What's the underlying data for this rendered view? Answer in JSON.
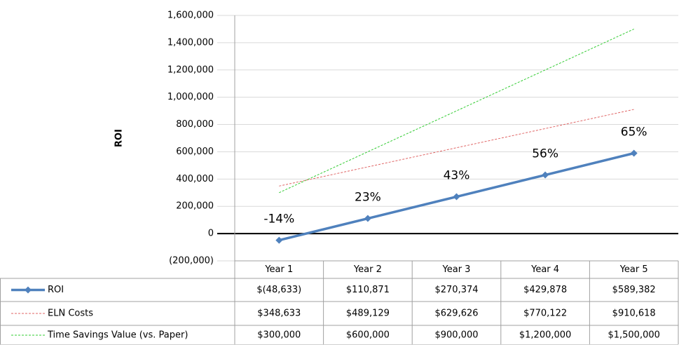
{
  "chart_data": {
    "type": "line",
    "ylabel": "ROI",
    "categories": [
      "Year 1",
      "Year 2",
      "Year 3",
      "Year 4",
      "Year 5"
    ],
    "series": [
      {
        "name": "ROI",
        "color": "#4f81bd",
        "values": [
          -48633,
          110871,
          270374,
          429878,
          589382
        ],
        "value_labels": [
          "$(48,633)",
          "$110,871",
          "$270,374",
          "$429,878",
          "$589,382"
        ]
      },
      {
        "name": "ELN Costs",
        "color": "#e06666",
        "values": [
          348633,
          489129,
          629626,
          770122,
          910618
        ],
        "value_labels": [
          "$348,633",
          "$489,129",
          "$629,626",
          "$770,122",
          "$910,618"
        ]
      },
      {
        "name": "Time Savings Value (vs. Paper)",
        "color": "#33cc33",
        "values": [
          300000,
          600000,
          900000,
          1200000,
          1500000
        ],
        "value_labels": [
          "$300,000",
          "$600,000",
          "$900,000",
          "$1,200,000",
          "$1,500,000"
        ]
      }
    ],
    "annotations": [
      "-14%",
      "23%",
      "43%",
      "56%",
      "65%"
    ],
    "ylim": [
      -200000,
      1600000
    ],
    "yticks": [
      {
        "value": -200000,
        "label": "(200,000)"
      },
      0,
      {
        "value": 200000,
        "label": "200,000"
      },
      {
        "value": 400000,
        "label": "400,000"
      },
      {
        "value": 600000,
        "label": "600,000"
      },
      {
        "value": 800000,
        "label": "800,000"
      },
      {
        "value": 1000000,
        "label": "1,000,000"
      },
      {
        "value": 1200000,
        "label": "1,200,000"
      },
      {
        "value": 1400000,
        "label": "1,400,000"
      },
      {
        "value": 1600000,
        "label": "1,600,000"
      }
    ],
    "grid": true
  }
}
